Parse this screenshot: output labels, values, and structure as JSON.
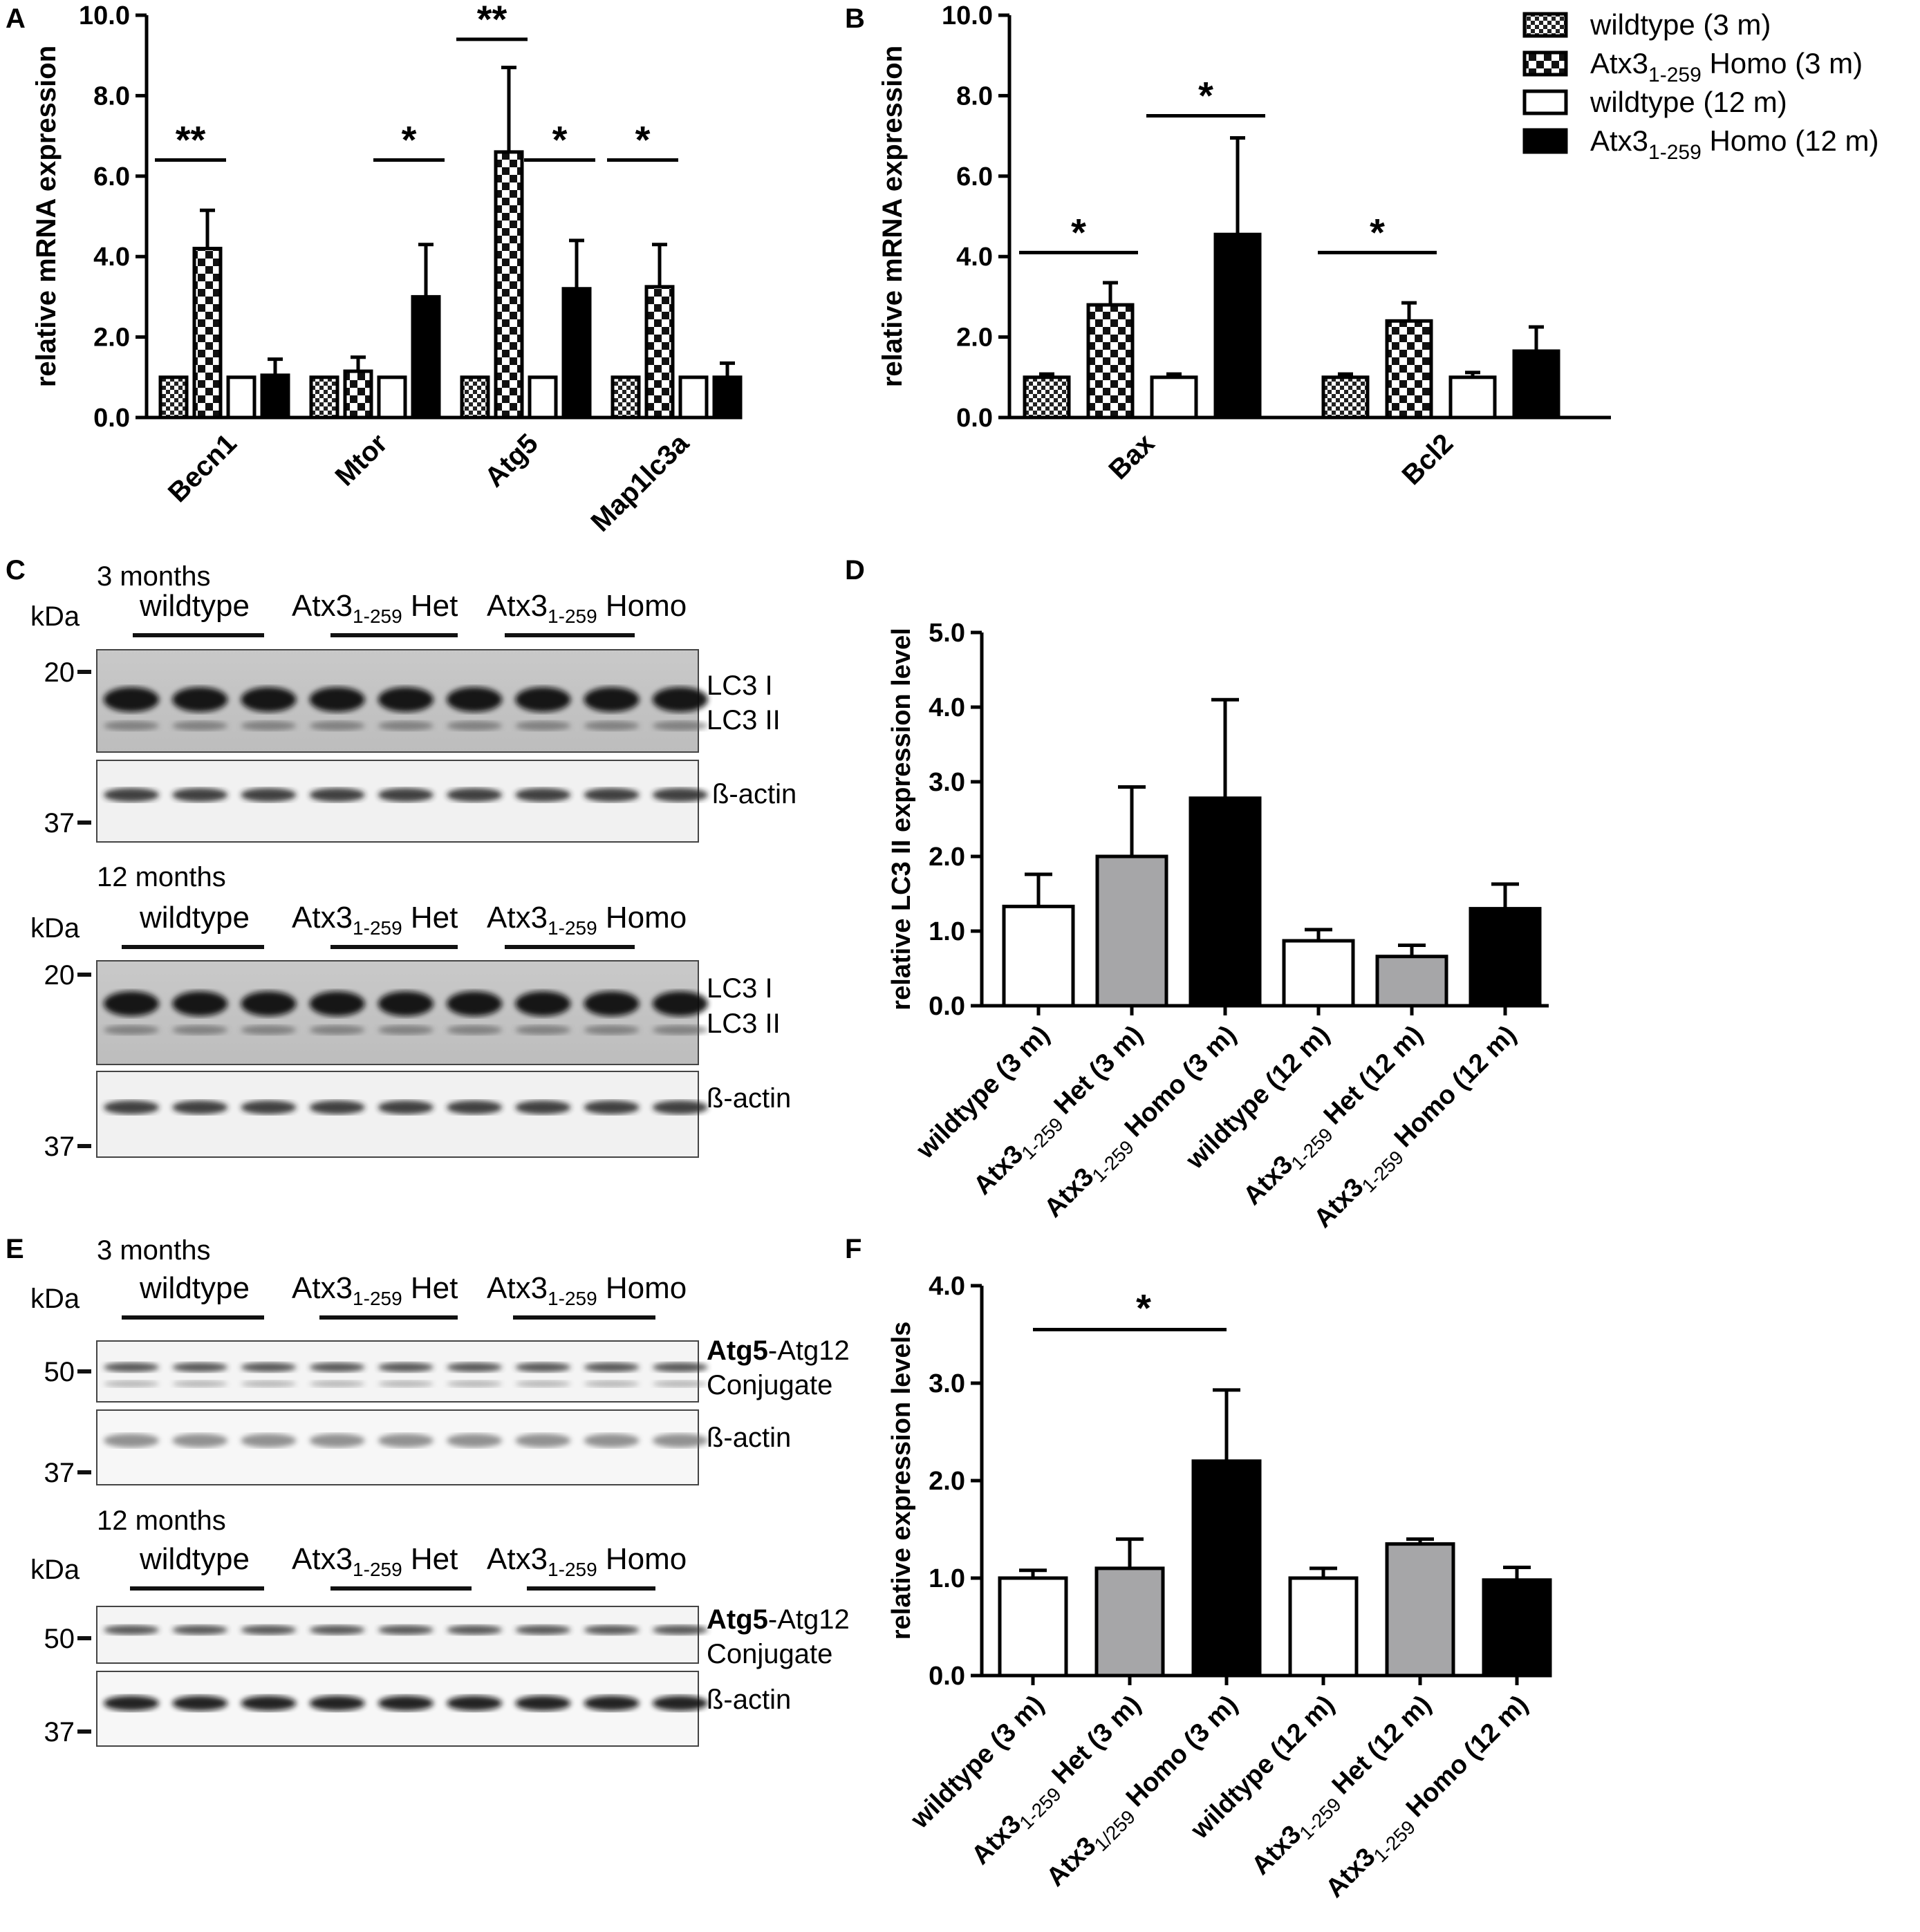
{
  "panels": {
    "A": {
      "label": "A"
    },
    "B": {
      "label": "B"
    },
    "C": {
      "label": "C"
    },
    "D": {
      "label": "D"
    },
    "E": {
      "label": "E"
    },
    "F": {
      "label": "F"
    }
  },
  "legend_ab": [
    {
      "name": "wildtype (3 m)",
      "pattern": "small-check"
    },
    {
      "name": "Atx3",
      "sub": "1-259",
      "suffix": " Homo (3 m)",
      "pattern": "big-check"
    },
    {
      "name": "wildtype (12 m)",
      "pattern": "white"
    },
    {
      "name": "Atx3",
      "sub": "1-259",
      "suffix": " Homo (12 m)",
      "pattern": "black"
    }
  ],
  "chart_data": [
    {
      "panel": "A",
      "type": "bar",
      "ylabel": "relative mRNA expression",
      "ylim": [
        0,
        10
      ],
      "yticks": [
        "0.0",
        "2.0",
        "4.0",
        "6.0",
        "8.0",
        "10.0"
      ],
      "categories": [
        "Becn1",
        "Mtor",
        "Atg5",
        "Map1lc3a"
      ],
      "series": [
        {
          "name": "wildtype (3 m)",
          "values": [
            1.0,
            1.0,
            1.0,
            1.0
          ],
          "err": [
            0,
            0,
            0,
            0
          ]
        },
        {
          "name": "Atx3 1-259 Homo (3 m)",
          "values": [
            4.2,
            1.15,
            6.6,
            3.25
          ],
          "err": [
            0.95,
            0.35,
            2.1,
            1.05
          ]
        },
        {
          "name": "wildtype (12 m)",
          "values": [
            1.0,
            1.0,
            1.0,
            1.0
          ],
          "err": [
            0,
            0,
            0,
            0
          ]
        },
        {
          "name": "Atx3 1-259 Homo (12 m)",
          "values": [
            1.05,
            3.0,
            3.2,
            1.0
          ],
          "err": [
            0.4,
            1.3,
            1.2,
            0.35
          ]
        }
      ],
      "significance": [
        {
          "label": "**",
          "category": 0,
          "from": 0,
          "to": 1,
          "y": 6.4
        },
        {
          "label": "*",
          "category": 1,
          "from": 2,
          "to": 3,
          "y": 6.4
        },
        {
          "label": "**",
          "category": 2,
          "from": 0,
          "to": 1,
          "y": 9.4
        },
        {
          "label": "*",
          "category": 2,
          "from": 2,
          "to": 3,
          "y": 6.4
        },
        {
          "label": "*",
          "category": 3,
          "from": 0,
          "to": 1,
          "y": 6.4
        }
      ]
    },
    {
      "panel": "B",
      "type": "bar",
      "ylabel": "relative mRNA expression",
      "ylim": [
        0,
        10
      ],
      "yticks": [
        "0.0",
        "2.0",
        "4.0",
        "6.0",
        "8.0",
        "10.0"
      ],
      "categories": [
        "Bax",
        "Bcl2"
      ],
      "series": [
        {
          "name": "wildtype (3 m)",
          "values": [
            1.0,
            1.0
          ],
          "err": [
            0.08,
            0.08
          ]
        },
        {
          "name": "Atx3 1-259 Homo (3 m)",
          "values": [
            2.8,
            2.4
          ],
          "err": [
            0.55,
            0.45
          ]
        },
        {
          "name": "wildtype (12 m)",
          "values": [
            1.0,
            1.0
          ],
          "err": [
            0.08,
            0.12
          ]
        },
        {
          "name": "Atx3 1-259 Homo (12 m)",
          "values": [
            4.55,
            1.65
          ],
          "err": [
            2.4,
            0.6
          ]
        }
      ],
      "significance": [
        {
          "label": "*",
          "category": 0,
          "from": 0,
          "to": 1,
          "y": 4.1
        },
        {
          "label": "*",
          "category": 0,
          "from": 2,
          "to": 3,
          "y": 7.5
        },
        {
          "label": "*",
          "category": 1,
          "from": 0,
          "to": 1,
          "y": 4.1
        }
      ]
    },
    {
      "panel": "D",
      "type": "bar",
      "ylabel": "relative LC3 II expression level",
      "ylim": [
        0,
        5
      ],
      "yticks": [
        "0.0",
        "1.0",
        "2.0",
        "3.0",
        "4.0",
        "5.0"
      ],
      "categories": [
        "wildtype (3 m)",
        "Atx3 1-259 Het (3 m)",
        "Atx3 1-259 Homo (3 m)",
        "wildtype (12 m)",
        "Atx3 1-259 Het (12 m)",
        "Atx3 1-259 Homo (12 m)"
      ],
      "values": [
        1.33,
        2.0,
        2.78,
        0.87,
        0.66,
        1.3
      ],
      "err": [
        0.43,
        0.93,
        1.32,
        0.15,
        0.15,
        0.33
      ],
      "colors": [
        "#ffffff",
        "#a6a6a8",
        "#000000",
        "#ffffff",
        "#a6a6a8",
        "#000000"
      ]
    },
    {
      "panel": "F",
      "type": "bar",
      "ylabel": "relative expression levels",
      "ylim": [
        0,
        4
      ],
      "yticks": [
        "0.0",
        "1.0",
        "2.0",
        "3.0",
        "4.0"
      ],
      "categories": [
        "wildtype (3 m)",
        "Atx3 1-259 Het (3 m)",
        "Atx3 1/259 Homo (3 m)",
        "wildtype (12 m)",
        "Atx3 1-259 Het (12 m)",
        "Atx3 1-259 Homo (12 m)"
      ],
      "values": [
        1.0,
        1.1,
        2.2,
        1.0,
        1.35,
        0.98
      ],
      "err": [
        0.08,
        0.3,
        0.73,
        0.1,
        0.05,
        0.13
      ],
      "colors": [
        "#ffffff",
        "#a6a6a8",
        "#000000",
        "#ffffff",
        "#a6a6a8",
        "#000000"
      ],
      "significance": [
        {
          "label": "*",
          "from": 0,
          "to": 2,
          "y": 3.55
        }
      ]
    }
  ],
  "xlabels_D": [
    {
      "main": "wildtype (3 m)"
    },
    {
      "main": "Atx3",
      "sub": "1-259",
      "rest": " Het (3 m)"
    },
    {
      "main": "Atx3",
      "sub": "1-259",
      "rest": " Homo (3 m)"
    },
    {
      "main": "wildtype (12 m)"
    },
    {
      "main": "Atx3",
      "sub": "1-259",
      "rest": " Het (12 m)"
    },
    {
      "main": "Atx3",
      "sub": "1-259",
      "rest": " Homo (12 m)"
    }
  ],
  "xlabels_F": [
    {
      "main": "wildtype (3 m)"
    },
    {
      "main": "Atx3",
      "sub": "1-259",
      "rest": " Het (3 m)"
    },
    {
      "main": "Atx3",
      "sub": "1/259",
      "rest": " Homo (3 m)"
    },
    {
      "main": "wildtype (12 m)"
    },
    {
      "main": "Atx3",
      "sub": "1-259",
      "rest": " Het (12 m)"
    },
    {
      "main": "Atx3",
      "sub": "1-259",
      "rest": " Homo (12 m)"
    }
  ],
  "blots": {
    "groups": [
      "wildtype",
      "Atx3",
      "Het",
      "Homo"
    ],
    "sub": "1-259",
    "kda": "kDa",
    "C": {
      "top_age": "3 months",
      "bottom_age": "12 months",
      "markers": [
        "20",
        "37"
      ],
      "band_labels": [
        "LC3 I",
        "LC3 II",
        "ß-actin"
      ]
    },
    "E": {
      "top_age": "3 months",
      "bottom_age": "12 months",
      "markers": [
        "50",
        "37"
      ],
      "band_labels": [
        "Atg5",
        "-Atg12",
        "Conjugate",
        "ß-actin"
      ]
    }
  }
}
